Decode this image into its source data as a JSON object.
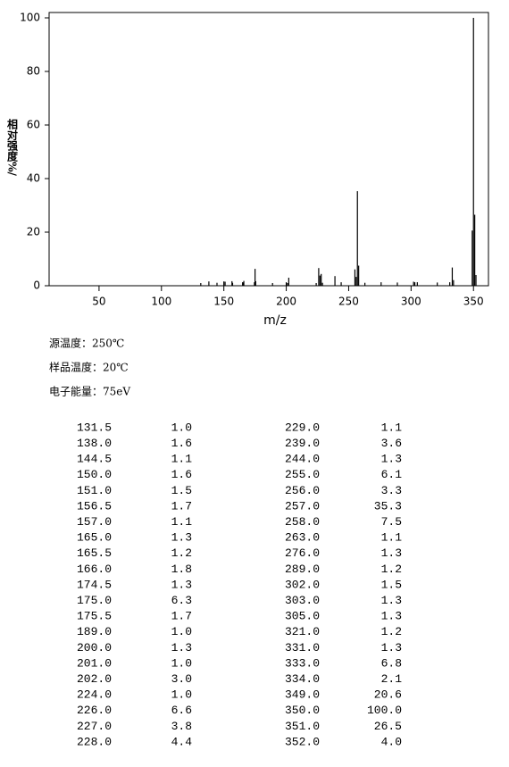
{
  "chart_data": {
    "type": "bar",
    "xlabel": "m/z",
    "ylabel": "相对强度%/",
    "x": [
      131.5,
      138.0,
      144.5,
      150.0,
      151.0,
      156.5,
      157.0,
      165.0,
      165.5,
      166.0,
      174.5,
      175.0,
      175.5,
      189.0,
      200.0,
      201.0,
      202.0,
      224.0,
      226.0,
      227.0,
      228.0,
      229.0,
      239.0,
      244.0,
      255.0,
      256.0,
      257.0,
      258.0,
      263.0,
      276.0,
      289.0,
      302.0,
      303.0,
      305.0,
      321.0,
      331.0,
      333.0,
      334.0,
      349.0,
      350.0,
      351.0,
      352.0
    ],
    "values": [
      1.0,
      1.6,
      1.1,
      1.6,
      1.5,
      1.7,
      1.1,
      1.3,
      1.2,
      1.8,
      1.3,
      6.3,
      1.7,
      1.0,
      1.3,
      1.0,
      3.0,
      1.0,
      6.6,
      3.8,
      4.4,
      1.1,
      3.6,
      1.3,
      6.1,
      3.3,
      35.3,
      7.5,
      1.1,
      1.3,
      1.2,
      1.5,
      1.3,
      1.3,
      1.2,
      1.3,
      6.8,
      2.1,
      20.6,
      100.0,
      26.5,
      4.0
    ],
    "color": "#000000",
    "xlim": [
      10,
      362
    ],
    "xticks": [
      50,
      100,
      150,
      200,
      250,
      300,
      350
    ],
    "ylim": [
      0,
      102
    ],
    "yticks": [
      0,
      20,
      40,
      60,
      80,
      100
    ]
  },
  "info": [
    "源温度：250℃",
    "样品温度：20℃",
    "电子能量：75eV"
  ],
  "table": {
    "rows": [
      [
        "131.5",
        "1.0",
        "229.0",
        "1.1"
      ],
      [
        "138.0",
        "1.6",
        "239.0",
        "3.6"
      ],
      [
        "144.5",
        "1.1",
        "244.0",
        "1.3"
      ],
      [
        "150.0",
        "1.6",
        "255.0",
        "6.1"
      ],
      [
        "151.0",
        "1.5",
        "256.0",
        "3.3"
      ],
      [
        "156.5",
        "1.7",
        "257.0",
        "35.3"
      ],
      [
        "157.0",
        "1.1",
        "258.0",
        "7.5"
      ],
      [
        "165.0",
        "1.3",
        "263.0",
        "1.1"
      ],
      [
        "165.5",
        "1.2",
        "276.0",
        "1.3"
      ],
      [
        "166.0",
        "1.8",
        "289.0",
        "1.2"
      ],
      [
        "174.5",
        "1.3",
        "302.0",
        "1.5"
      ],
      [
        "175.0",
        "6.3",
        "303.0",
        "1.3"
      ],
      [
        "175.5",
        "1.7",
        "305.0",
        "1.3"
      ],
      [
        "189.0",
        "1.0",
        "321.0",
        "1.2"
      ],
      [
        "200.0",
        "1.3",
        "331.0",
        "1.3"
      ],
      [
        "201.0",
        "1.0",
        "333.0",
        "6.8"
      ],
      [
        "202.0",
        "3.0",
        "334.0",
        "2.1"
      ],
      [
        "224.0",
        "1.0",
        "349.0",
        "20.6"
      ],
      [
        "226.0",
        "6.6",
        "350.0",
        "100.0"
      ],
      [
        "227.0",
        "3.8",
        "351.0",
        "26.5"
      ],
      [
        "228.0",
        "4.4",
        "352.0",
        "4.0"
      ]
    ]
  }
}
